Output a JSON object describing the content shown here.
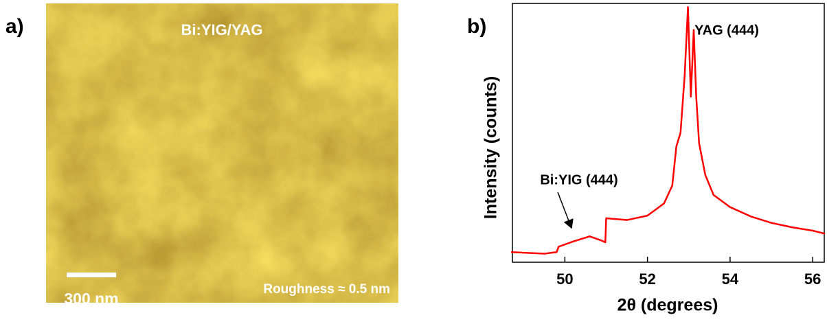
{
  "afm_panel": {
    "panel_label": "a)",
    "title": "Bi:YIG/YAG",
    "scale_bar_label": "300 nm",
    "annotation": "Roughness ≈ 0.5 nm"
  },
  "chart_data": {
    "type": "line",
    "panel_label": "b)",
    "x_label": "2θ (degrees)",
    "y_label": "Intensity (counts)",
    "annotations": [
      "YAG (444)",
      "Bi:YIG (444)"
    ],
    "x": [
      48.7,
      49.5,
      49.8,
      49.85,
      50.2,
      50.6,
      50.9,
      50.98,
      51.0,
      51.5,
      52.0,
      52.4,
      52.6,
      52.7,
      52.8,
      52.9,
      52.98,
      53.05,
      53.12,
      53.18,
      53.25,
      53.4,
      53.6,
      54.0,
      54.5,
      55.0,
      55.5,
      56.0,
      56.3
    ],
    "series": [
      {
        "color": "#ff0000",
        "values": [
          3.9,
          3.3,
          3.9,
          6,
          8,
          10,
          8.3,
          7.7,
          17,
          16.3,
          18,
          22.7,
          29.6,
          44.8,
          50,
          72,
          98.6,
          64,
          89.8,
          64,
          46,
          33.7,
          26,
          21.3,
          17.7,
          15.2,
          13.5,
          12.2,
          11
        ]
      }
    ],
    "xlim": [
      48.73,
      56.28
    ],
    "ylim": [
      0,
      100
    ],
    "xticks": [
      50,
      52,
      54,
      56
    ]
  }
}
